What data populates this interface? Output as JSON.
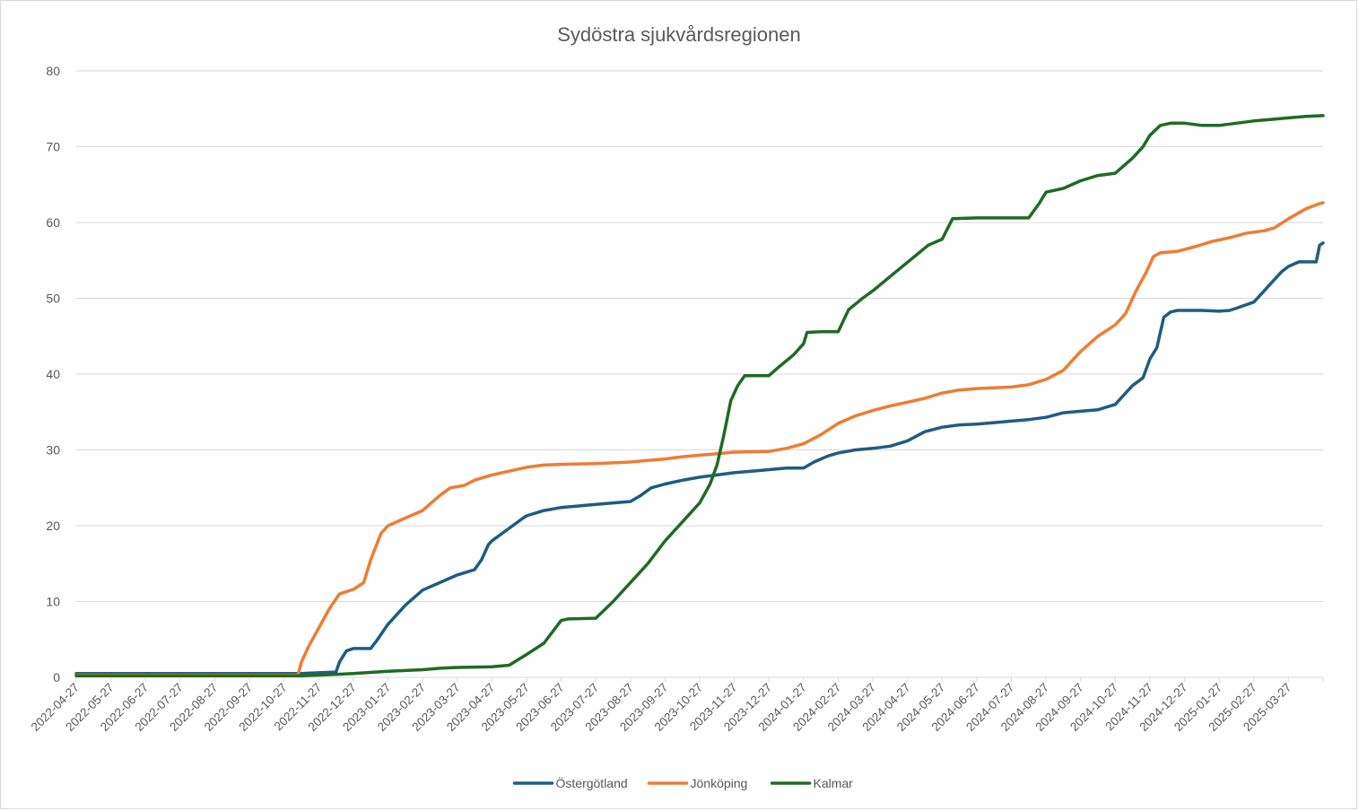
{
  "chart_data": {
    "type": "line",
    "title": "Sydöstra sjukvårdsregionen",
    "xlabel": "",
    "ylabel": "",
    "ylim": [
      0,
      80
    ],
    "yticks": [
      0,
      10,
      20,
      30,
      40,
      50,
      60,
      70,
      80
    ],
    "grid": true,
    "legend_position": "bottom",
    "categories": [
      "2022-04-27",
      "2022-05-27",
      "2022-06-27",
      "2022-07-27",
      "2022-08-27",
      "2022-09-27",
      "2022-10-27",
      "2022-11-27",
      "2022-12-27",
      "2023-01-27",
      "2023-02-27",
      "2023-03-27",
      "2023-04-27",
      "2023-05-27",
      "2023-06-27",
      "2023-07-27",
      "2023-08-27",
      "2023-09-27",
      "2023-10-27",
      "2023-11-27",
      "2023-12-27",
      "2024-01-27",
      "2024-02-27",
      "2024-03-27",
      "2024-04-27",
      "2024-05-27",
      "2024-06-27",
      "2024-07-27",
      "2024-08-27",
      "2024-09-27",
      "2024-10-27",
      "2024-11-27",
      "2024-12-27",
      "2025-01-27",
      "2025-02-27",
      "2025-03-27"
    ],
    "x_end_index": 36,
    "series": [
      {
        "name": "Östergötland",
        "color": "#1f5c82",
        "points": [
          [
            0,
            0.5
          ],
          [
            6.5,
            0.5
          ],
          [
            7.0,
            0.6
          ],
          [
            7.5,
            0.7
          ],
          [
            7.6,
            2.0
          ],
          [
            7.8,
            3.5
          ],
          [
            8.0,
            3.8
          ],
          [
            8.5,
            3.8
          ],
          [
            8.7,
            5.0
          ],
          [
            9.0,
            7.0
          ],
          [
            9.5,
            9.5
          ],
          [
            10.0,
            11.5
          ],
          [
            10.5,
            12.5
          ],
          [
            11.0,
            13.5
          ],
          [
            11.5,
            14.2
          ],
          [
            11.7,
            15.5
          ],
          [
            11.9,
            17.5
          ],
          [
            12.0,
            18.0
          ],
          [
            12.3,
            19.0
          ],
          [
            12.6,
            20.0
          ],
          [
            12.9,
            21.0
          ],
          [
            13.0,
            21.3
          ],
          [
            13.5,
            22.0
          ],
          [
            14.0,
            22.4
          ],
          [
            14.5,
            22.6
          ],
          [
            15.0,
            22.8
          ],
          [
            15.5,
            23.0
          ],
          [
            16.0,
            23.2
          ],
          [
            16.3,
            24.0
          ],
          [
            16.6,
            25.0
          ],
          [
            17.0,
            25.5
          ],
          [
            17.5,
            26.0
          ],
          [
            18.0,
            26.4
          ],
          [
            18.5,
            26.7
          ],
          [
            19.0,
            27.0
          ],
          [
            19.5,
            27.2
          ],
          [
            20.0,
            27.4
          ],
          [
            20.5,
            27.6
          ],
          [
            21.0,
            27.6
          ],
          [
            21.3,
            28.4
          ],
          [
            21.7,
            29.2
          ],
          [
            22.0,
            29.6
          ],
          [
            22.5,
            30.0
          ],
          [
            23.0,
            30.2
          ],
          [
            23.5,
            30.5
          ],
          [
            24.0,
            31.2
          ],
          [
            24.5,
            32.4
          ],
          [
            25.0,
            33.0
          ],
          [
            25.5,
            33.3
          ],
          [
            26.0,
            33.4
          ],
          [
            26.5,
            33.6
          ],
          [
            27.0,
            33.8
          ],
          [
            27.5,
            34.0
          ],
          [
            28.0,
            34.3
          ],
          [
            28.5,
            34.9
          ],
          [
            29.0,
            35.1
          ],
          [
            29.5,
            35.3
          ],
          [
            30.0,
            36.0
          ],
          [
            30.3,
            37.5
          ],
          [
            30.5,
            38.5
          ],
          [
            30.8,
            39.5
          ],
          [
            31.0,
            42.0
          ],
          [
            31.2,
            43.5
          ],
          [
            31.4,
            47.5
          ],
          [
            31.6,
            48.2
          ],
          [
            31.8,
            48.4
          ],
          [
            32.5,
            48.4
          ],
          [
            33.0,
            48.3
          ],
          [
            33.3,
            48.4
          ],
          [
            33.5,
            48.7
          ],
          [
            34.0,
            49.5
          ],
          [
            34.3,
            51.0
          ],
          [
            34.5,
            52.0
          ],
          [
            34.8,
            53.5
          ],
          [
            35.0,
            54.2
          ],
          [
            35.3,
            54.8
          ],
          [
            35.6,
            54.8
          ],
          [
            35.8,
            54.8
          ],
          [
            35.9,
            57.0
          ],
          [
            36.0,
            57.3
          ]
        ]
      },
      {
        "name": "Jönköping",
        "color": "#ed7d31",
        "points": [
          [
            0,
            0.3
          ],
          [
            6.4,
            0.3
          ],
          [
            6.5,
            2.0
          ],
          [
            6.7,
            4.0
          ],
          [
            7.0,
            6.5
          ],
          [
            7.3,
            9.0
          ],
          [
            7.6,
            11.0
          ],
          [
            8.0,
            11.6
          ],
          [
            8.3,
            12.5
          ],
          [
            8.5,
            15.5
          ],
          [
            8.8,
            19.0
          ],
          [
            9.0,
            20.0
          ],
          [
            9.5,
            21.0
          ],
          [
            10.0,
            22.0
          ],
          [
            10.5,
            24.0
          ],
          [
            10.8,
            25.0
          ],
          [
            11.2,
            25.3
          ],
          [
            11.5,
            26.0
          ],
          [
            12.0,
            26.7
          ],
          [
            12.5,
            27.2
          ],
          [
            13.0,
            27.7
          ],
          [
            13.5,
            28.0
          ],
          [
            14.0,
            28.1
          ],
          [
            15.0,
            28.2
          ],
          [
            16.0,
            28.4
          ],
          [
            16.5,
            28.6
          ],
          [
            17.0,
            28.8
          ],
          [
            17.5,
            29.1
          ],
          [
            18.0,
            29.3
          ],
          [
            18.5,
            29.5
          ],
          [
            19.0,
            29.7
          ],
          [
            20.0,
            29.8
          ],
          [
            20.5,
            30.2
          ],
          [
            21.0,
            30.8
          ],
          [
            21.5,
            32.0
          ],
          [
            22.0,
            33.5
          ],
          [
            22.5,
            34.5
          ],
          [
            23.0,
            35.2
          ],
          [
            23.5,
            35.8
          ],
          [
            24.0,
            36.3
          ],
          [
            24.5,
            36.8
          ],
          [
            25.0,
            37.5
          ],
          [
            25.5,
            37.9
          ],
          [
            26.0,
            38.1
          ],
          [
            27.0,
            38.3
          ],
          [
            27.5,
            38.6
          ],
          [
            28.0,
            39.3
          ],
          [
            28.5,
            40.5
          ],
          [
            28.8,
            42.0
          ],
          [
            29.0,
            43.0
          ],
          [
            29.5,
            45.0
          ],
          [
            30.0,
            46.5
          ],
          [
            30.3,
            48.0
          ],
          [
            30.6,
            51.0
          ],
          [
            30.9,
            53.5
          ],
          [
            31.1,
            55.5
          ],
          [
            31.3,
            56.0
          ],
          [
            31.8,
            56.2
          ],
          [
            32.3,
            56.8
          ],
          [
            32.8,
            57.5
          ],
          [
            33.3,
            58.0
          ],
          [
            33.8,
            58.6
          ],
          [
            34.3,
            58.9
          ],
          [
            34.6,
            59.3
          ],
          [
            35.0,
            60.5
          ],
          [
            35.5,
            61.8
          ],
          [
            35.9,
            62.5
          ],
          [
            36.0,
            62.6
          ]
        ]
      },
      {
        "name": "Kalmar",
        "color": "#1f6b25",
        "points": [
          [
            0,
            0.2
          ],
          [
            6.5,
            0.2
          ],
          [
            7.0,
            0.3
          ],
          [
            8.0,
            0.5
          ],
          [
            9.0,
            0.8
          ],
          [
            10.0,
            1.0
          ],
          [
            10.5,
            1.2
          ],
          [
            11.0,
            1.3
          ],
          [
            12.0,
            1.4
          ],
          [
            12.5,
            1.6
          ],
          [
            13.0,
            3.0
          ],
          [
            13.5,
            4.5
          ],
          [
            14.0,
            7.5
          ],
          [
            14.2,
            7.7
          ],
          [
            15.0,
            7.8
          ],
          [
            15.5,
            10.0
          ],
          [
            16.0,
            12.5
          ],
          [
            16.5,
            15.0
          ],
          [
            17.0,
            18.0
          ],
          [
            17.5,
            20.5
          ],
          [
            18.0,
            23.0
          ],
          [
            18.3,
            25.5
          ],
          [
            18.5,
            28.0
          ],
          [
            18.7,
            32.0
          ],
          [
            18.9,
            36.5
          ],
          [
            19.1,
            38.5
          ],
          [
            19.3,
            39.8
          ],
          [
            20.0,
            39.8
          ],
          [
            20.3,
            41.0
          ],
          [
            20.7,
            42.5
          ],
          [
            21.0,
            44.0
          ],
          [
            21.1,
            45.5
          ],
          [
            21.5,
            45.6
          ],
          [
            22.0,
            45.6
          ],
          [
            22.3,
            48.5
          ],
          [
            22.7,
            50.0
          ],
          [
            23.0,
            51.0
          ],
          [
            23.4,
            52.5
          ],
          [
            23.8,
            54.0
          ],
          [
            24.2,
            55.5
          ],
          [
            24.6,
            57.0
          ],
          [
            25.0,
            57.8
          ],
          [
            25.3,
            60.5
          ],
          [
            26.0,
            60.6
          ],
          [
            27.0,
            60.6
          ],
          [
            27.5,
            60.6
          ],
          [
            27.8,
            62.5
          ],
          [
            28.0,
            64.0
          ],
          [
            28.5,
            64.5
          ],
          [
            29.0,
            65.5
          ],
          [
            29.5,
            66.2
          ],
          [
            30.0,
            66.5
          ],
          [
            30.5,
            68.5
          ],
          [
            30.8,
            70.0
          ],
          [
            31.0,
            71.5
          ],
          [
            31.3,
            72.8
          ],
          [
            31.6,
            73.1
          ],
          [
            32.0,
            73.1
          ],
          [
            32.5,
            72.8
          ],
          [
            33.0,
            72.8
          ],
          [
            33.5,
            73.1
          ],
          [
            34.0,
            73.4
          ],
          [
            34.5,
            73.6
          ],
          [
            35.0,
            73.8
          ],
          [
            35.5,
            74.0
          ],
          [
            36.0,
            74.1
          ]
        ]
      }
    ]
  }
}
